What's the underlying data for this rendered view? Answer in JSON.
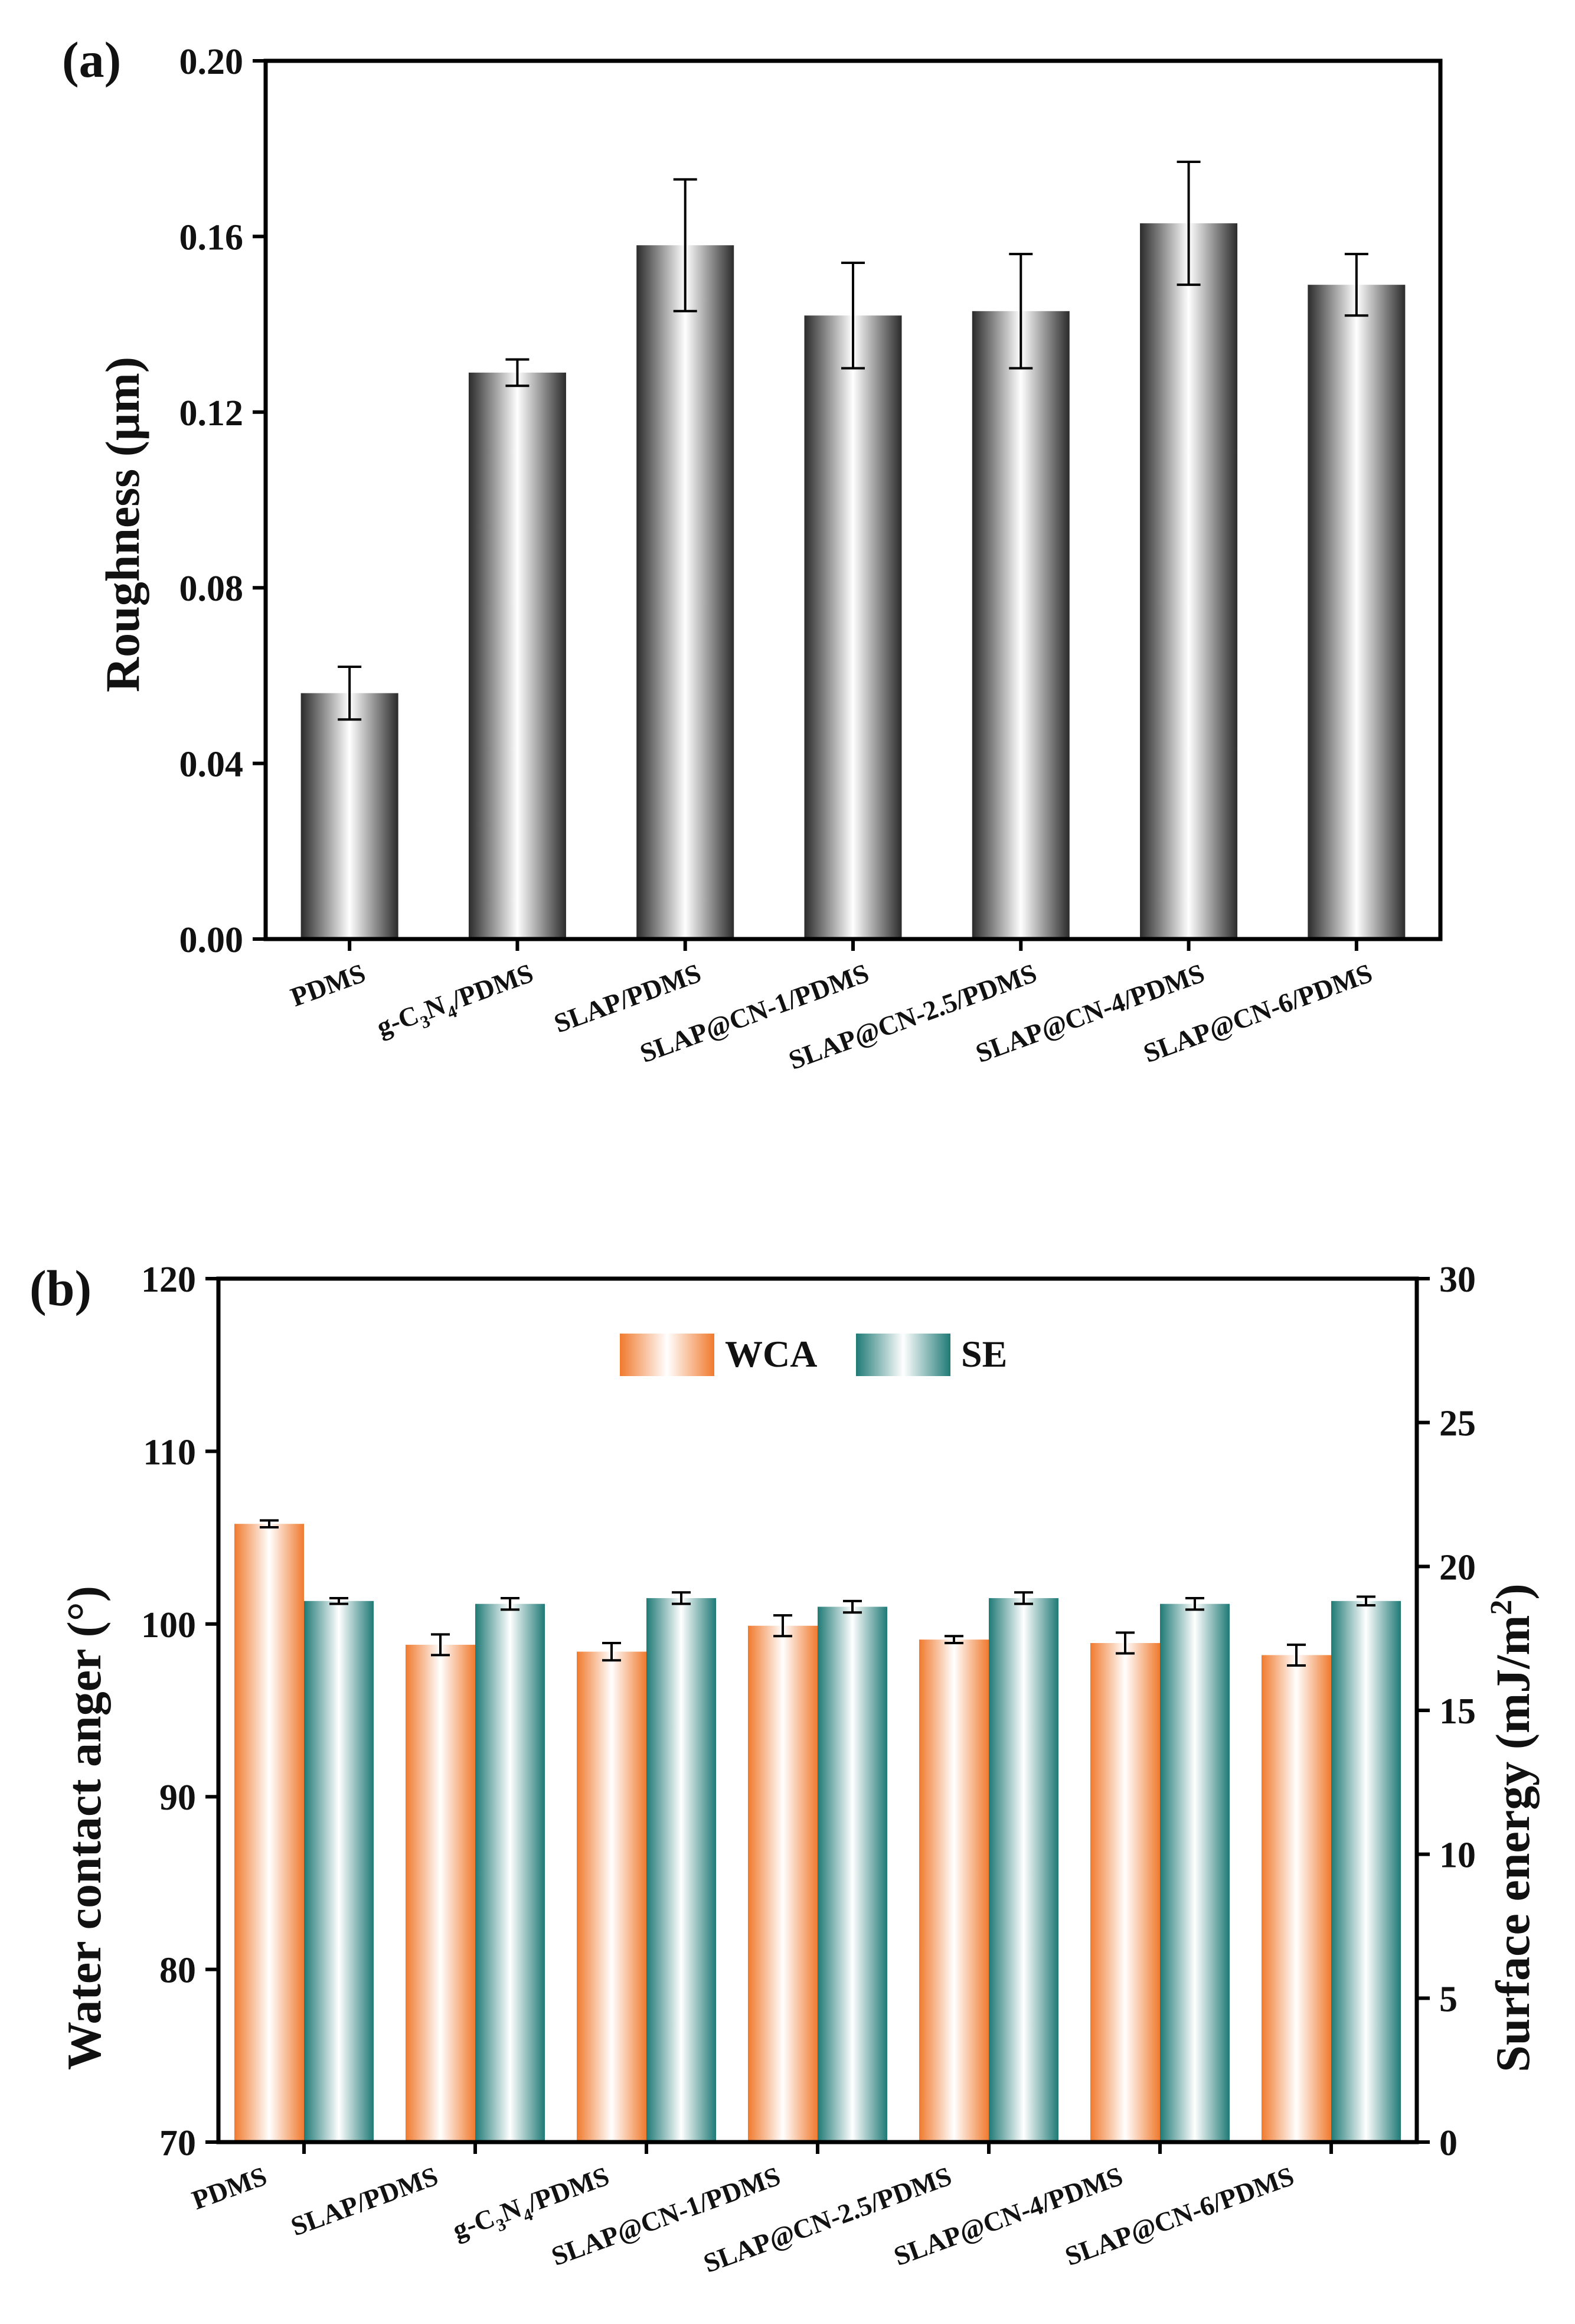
{
  "chart_data": [
    {
      "panel_label": "(a)",
      "type": "bar",
      "title": "",
      "xlabel": "",
      "ylabel": "Roughness (μm)",
      "ylim": [
        0,
        0.2
      ],
      "yticks": [
        "0.00",
        "0.04",
        "0.08",
        "0.12",
        "0.16",
        "0.20"
      ],
      "ytick_values": [
        0,
        0.04,
        0.08,
        0.12,
        0.16,
        0.2
      ],
      "categories": [
        {
          "base": "PDMS",
          "formula": false
        },
        {
          "base": "g-C",
          "sub1": "3",
          "mid": "N",
          "sub2": "4",
          "tail": "/PDMS",
          "formula": true
        },
        {
          "base": "SLAP/PDMS",
          "formula": false
        },
        {
          "base": "SLAP@CN-1/PDMS",
          "formula": false
        },
        {
          "base": "SLAP@CN-2.5/PDMS",
          "formula": false
        },
        {
          "base": "SLAP@CN-4/PDMS",
          "formula": false
        },
        {
          "base": "SLAP@CN-6/PDMS",
          "formula": false
        }
      ],
      "values": [
        0.056,
        0.129,
        0.158,
        0.142,
        0.143,
        0.163,
        0.149
      ],
      "errors": [
        0.006,
        0.003,
        0.015,
        0.012,
        0.013,
        0.014,
        0.007
      ],
      "bar_color": "#3a3a3a"
    },
    {
      "panel_label": "(b)",
      "type": "bar",
      "title": "",
      "xlabel": "",
      "ylabel": "Water contact anger (°)",
      "ylabel_right": "Surface energy (mJ/m",
      "ylabel_right_sup": "2",
      "ylabel_right_close": ")",
      "ylim": [
        70,
        120
      ],
      "ylim_right": [
        0,
        30
      ],
      "yticks": [
        "70",
        "80",
        "90",
        "100",
        "110",
        "120"
      ],
      "ytick_values": [
        70,
        80,
        90,
        100,
        110,
        120
      ],
      "yticks_right": [
        "0",
        "5",
        "10",
        "15",
        "20",
        "25",
        "30"
      ],
      "ytick_values_right": [
        0,
        5,
        10,
        15,
        20,
        25,
        30
      ],
      "categories": [
        {
          "base": "PDMS",
          "formula": false
        },
        {
          "base": "SLAP/PDMS",
          "formula": false
        },
        {
          "base": "g-C",
          "sub1": "3",
          "mid": "N",
          "sub2": "4",
          "tail": "/PDMS",
          "formula": true
        },
        {
          "base": "SLAP@CN-1/PDMS",
          "formula": false
        },
        {
          "base": "SLAP@CN-2.5/PDMS",
          "formula": false
        },
        {
          "base": "SLAP@CN-4/PDMS",
          "formula": false
        },
        {
          "base": "SLAP@CN-6/PDMS",
          "formula": false
        }
      ],
      "legend": [
        "WCA",
        "SE"
      ],
      "legend_position": "top-center",
      "series": [
        {
          "name": "WCA",
          "axis": "left",
          "color": "#f07a2e",
          "values": [
            105.8,
            98.8,
            98.4,
            99.9,
            99.1,
            98.9,
            98.2
          ],
          "errors": [
            0.2,
            0.6,
            0.5,
            0.6,
            0.2,
            0.6,
            0.6
          ]
        },
        {
          "name": "SE",
          "axis": "right",
          "color": "#1f7a76",
          "values": [
            18.8,
            18.7,
            18.9,
            18.6,
            18.9,
            18.7,
            18.8
          ],
          "errors": [
            0.1,
            0.2,
            0.2,
            0.2,
            0.2,
            0.2,
            0.15
          ]
        }
      ]
    }
  ]
}
